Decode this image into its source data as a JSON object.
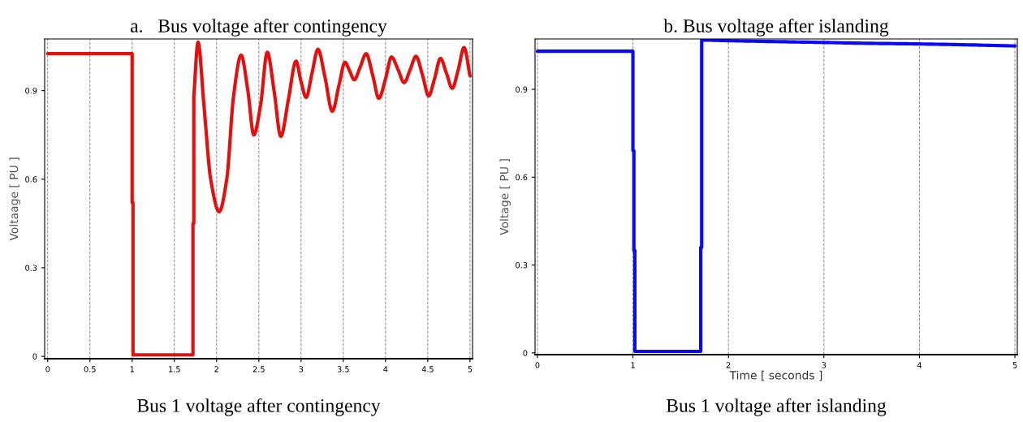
{
  "chart_data": [
    {
      "type": "line",
      "title": "a.   Bus voltage after contingency",
      "ylabel": "Voltaage [ PU ]",
      "annotations": [
        "Bus 1 voltage after contingency"
      ],
      "xlim": [
        -0.036,
        5.03
      ],
      "ylim": [
        -0.008,
        1.075
      ],
      "xticks": [
        0,
        0.5,
        1,
        1.5,
        2,
        2.5,
        3,
        3.5,
        4,
        4.5,
        5
      ],
      "yticks": [
        0,
        0.3,
        0.6,
        0.9
      ],
      "grid": "x",
      "marker": "none",
      "line_style": "solid",
      "series": [
        {
          "color": "#e31010",
          "x": [
            0,
            1.0,
            1.0,
            1.01,
            1.01,
            1.72,
            1.72,
            1.73,
            1.73,
            1.78,
            1.85,
            1.93,
            2.03,
            2.12,
            2.2,
            2.29,
            2.37,
            2.44,
            2.52,
            2.6,
            2.68,
            2.76,
            2.85,
            2.94,
            3.0,
            3.06,
            3.13,
            3.2,
            3.28,
            3.37,
            3.45,
            3.52,
            3.57,
            3.63,
            3.7,
            3.77,
            3.85,
            3.92,
            4.0,
            4.07,
            4.15,
            4.22,
            4.29,
            4.36,
            4.44,
            4.51,
            4.58,
            4.65,
            4.72,
            4.79,
            4.86,
            4.93,
            5.0
          ],
          "values": [
            1.025,
            1.025,
            0.52,
            0.52,
            0.005,
            0.005,
            0.45,
            0.45,
            0.88,
            1.064,
            0.85,
            0.6,
            0.49,
            0.6,
            0.88,
            1.02,
            0.9,
            0.75,
            0.85,
            1.03,
            0.9,
            0.745,
            0.87,
            1.0,
            0.93,
            0.877,
            0.96,
            1.04,
            0.95,
            0.83,
            0.92,
            0.996,
            0.97,
            0.937,
            0.98,
            1.025,
            0.95,
            0.874,
            0.94,
            1.014,
            0.97,
            0.927,
            0.97,
            1.016,
            0.95,
            0.882,
            0.94,
            1.009,
            0.96,
            0.908,
            0.97,
            1.046,
            0.95
          ]
        }
      ]
    },
    {
      "type": "line",
      "title": "b. Bus voltage after islanding",
      "xlabel": "Time [ seconds ]",
      "ylabel": "Voltage [ PU ]",
      "annotations": [
        "Bus 1 voltage after islanding"
      ],
      "xlim": [
        -0.025,
        5.025
      ],
      "ylim": [
        -0.006,
        1.072
      ],
      "xticks": [
        0,
        1,
        2,
        3,
        4,
        5
      ],
      "yticks": [
        0,
        0.3,
        0.6,
        0.9
      ],
      "grid": "x",
      "marker": "none",
      "line_style": "solid",
      "series": [
        {
          "color": "#0a0af5",
          "x": [
            0,
            1.0,
            1.0,
            1.01,
            1.01,
            1.02,
            1.02,
            1.71,
            1.71,
            1.72,
            1.72,
            1.75,
            2.0,
            2.5,
            3.0,
            3.5,
            4.0,
            4.5,
            5.0
          ],
          "values": [
            1.03,
            1.03,
            0.69,
            0.69,
            0.35,
            0.35,
            0.005,
            0.005,
            0.36,
            0.36,
            1.068,
            1.068,
            1.066,
            1.063,
            1.06,
            1.057,
            1.055,
            1.052,
            1.048
          ]
        }
      ]
    }
  ]
}
